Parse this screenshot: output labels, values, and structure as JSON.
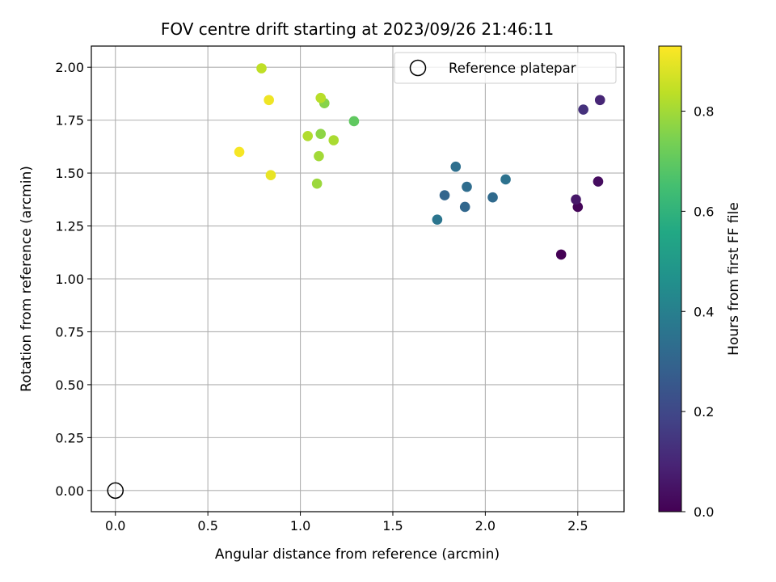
{
  "chart_data": {
    "type": "scatter",
    "title": "FOV centre drift starting at 2023/09/26 21:46:11",
    "xlabel": "Angular distance from reference (arcmin)",
    "ylabel": "Rotation from reference (arcmin)",
    "xlim": [
      -0.13,
      2.75
    ],
    "ylim": [
      -0.1,
      2.1
    ],
    "xticks": [
      0.0,
      0.5,
      1.0,
      1.5,
      2.0,
      2.5
    ],
    "xtick_labels": [
      "0.0",
      "0.5",
      "1.0",
      "1.5",
      "2.0",
      "2.5"
    ],
    "yticks": [
      0.0,
      0.25,
      0.5,
      0.75,
      1.0,
      1.25,
      1.5,
      1.75,
      2.0
    ],
    "ytick_labels": [
      "0.00",
      "0.25",
      "0.50",
      "0.75",
      "1.00",
      "1.25",
      "1.50",
      "1.75",
      "2.00"
    ],
    "grid": true,
    "colormap": "viridis",
    "colorbar": {
      "label": "Hours from first FF file",
      "range": [
        0.0,
        0.93
      ],
      "ticks": [
        0.0,
        0.2,
        0.4,
        0.6,
        0.8
      ],
      "tick_labels": [
        "0.0",
        "0.2",
        "0.4",
        "0.6",
        "0.8"
      ]
    },
    "reference": {
      "x": 0.0,
      "y": 0.0,
      "label": "Reference platepar",
      "marker": "open-circle",
      "color": "#000000"
    },
    "legend_position": "top-right",
    "points": [
      {
        "x": 2.41,
        "y": 1.115,
        "hours": 0.0
      },
      {
        "x": 2.5,
        "y": 1.34,
        "hours": 0.01
      },
      {
        "x": 2.61,
        "y": 1.46,
        "hours": 0.03
      },
      {
        "x": 2.49,
        "y": 1.375,
        "hours": 0.06
      },
      {
        "x": 2.62,
        "y": 1.845,
        "hours": 0.1
      },
      {
        "x": 2.53,
        "y": 1.8,
        "hours": 0.13
      },
      {
        "x": 1.78,
        "y": 1.395,
        "hours": 0.3
      },
      {
        "x": 1.89,
        "y": 1.34,
        "hours": 0.31
      },
      {
        "x": 2.04,
        "y": 1.385,
        "hours": 0.32
      },
      {
        "x": 1.9,
        "y": 1.435,
        "hours": 0.33
      },
      {
        "x": 1.84,
        "y": 1.53,
        "hours": 0.34
      },
      {
        "x": 2.11,
        "y": 1.47,
        "hours": 0.35
      },
      {
        "x": 1.74,
        "y": 1.28,
        "hours": 0.36
      },
      {
        "x": 1.29,
        "y": 1.745,
        "hours": 0.7
      },
      {
        "x": 1.13,
        "y": 1.83,
        "hours": 0.76
      },
      {
        "x": 1.11,
        "y": 1.685,
        "hours": 0.77
      },
      {
        "x": 1.09,
        "y": 1.45,
        "hours": 0.79
      },
      {
        "x": 1.1,
        "y": 1.58,
        "hours": 0.8
      },
      {
        "x": 1.18,
        "y": 1.655,
        "hours": 0.81
      },
      {
        "x": 1.04,
        "y": 1.675,
        "hours": 0.82
      },
      {
        "x": 1.11,
        "y": 1.855,
        "hours": 0.83
      },
      {
        "x": 0.79,
        "y": 1.995,
        "hours": 0.84
      },
      {
        "x": 0.84,
        "y": 1.49,
        "hours": 0.9
      },
      {
        "x": 0.83,
        "y": 1.845,
        "hours": 0.91
      },
      {
        "x": 0.67,
        "y": 1.6,
        "hours": 0.92
      }
    ]
  }
}
